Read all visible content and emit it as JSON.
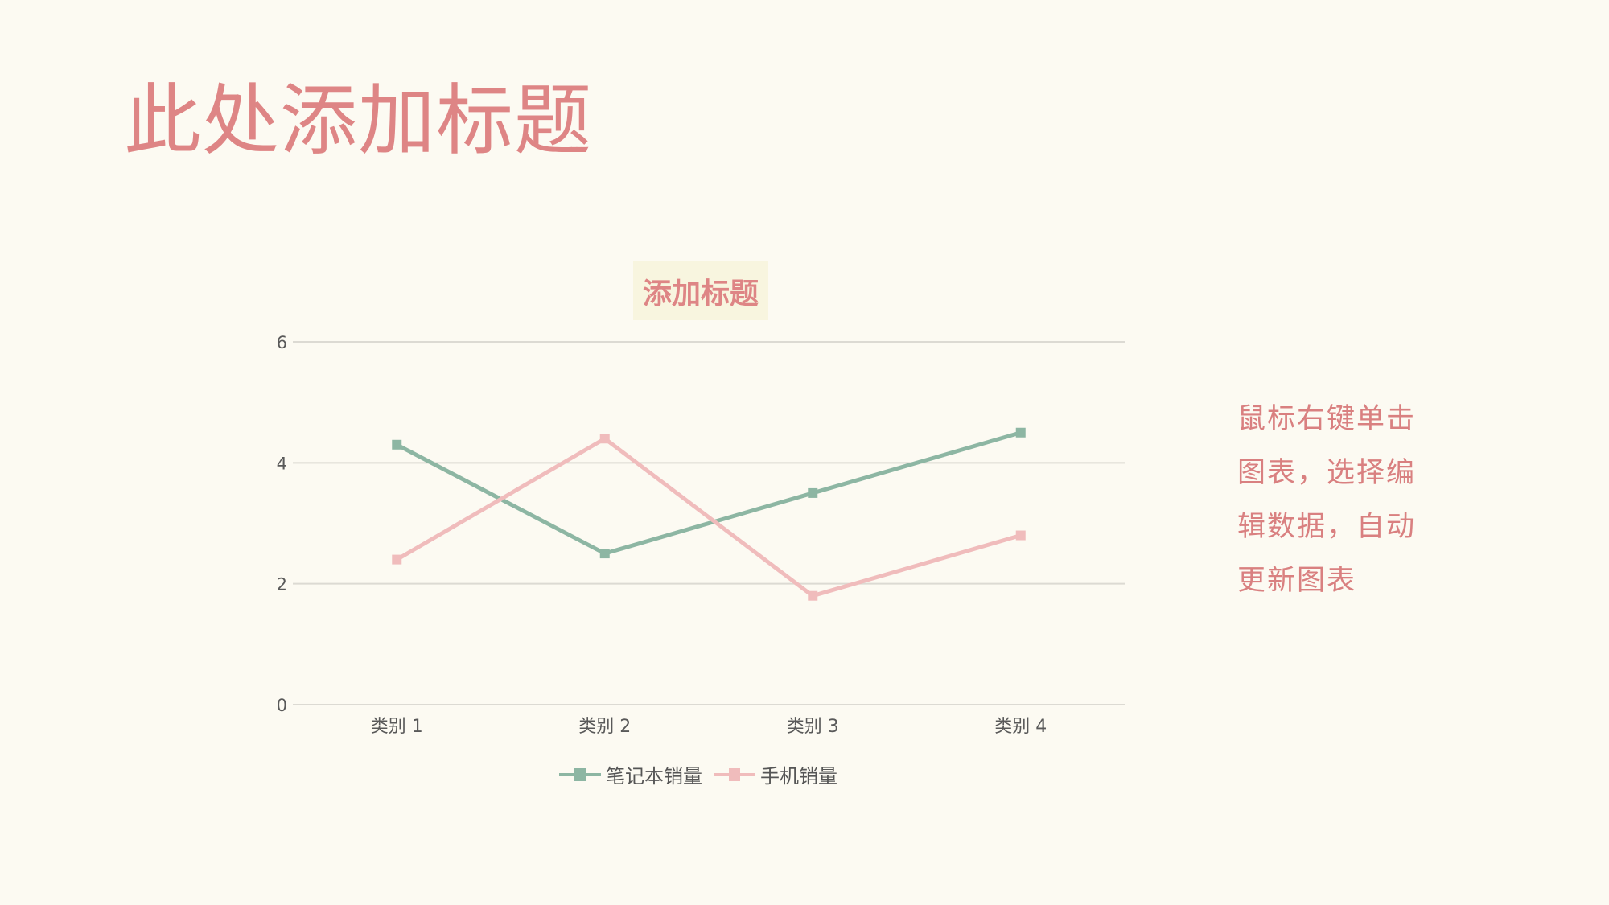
{
  "page_title": "此处添加标题",
  "side_text": [
    "鼠标右键单击",
    "图表，选择编",
    "辑数据，自动",
    "更新图表"
  ],
  "chart_data": {
    "type": "line",
    "title": "添加标题",
    "categories": [
      "类别 1",
      "类别 2",
      "类别 3",
      "类别 4"
    ],
    "series": [
      {
        "name": "笔记本销量",
        "values": [
          4.3,
          2.5,
          3.5,
          4.5
        ],
        "color": "#8db6a3"
      },
      {
        "name": "手机销量",
        "values": [
          2.4,
          4.4,
          1.8,
          2.8
        ],
        "color": "#f0bcbc"
      }
    ],
    "yticks": [
      "0",
      "2",
      "4",
      "6"
    ],
    "ylim": [
      0,
      6
    ],
    "grid": true,
    "legend": "bottom",
    "marker": "square"
  }
}
